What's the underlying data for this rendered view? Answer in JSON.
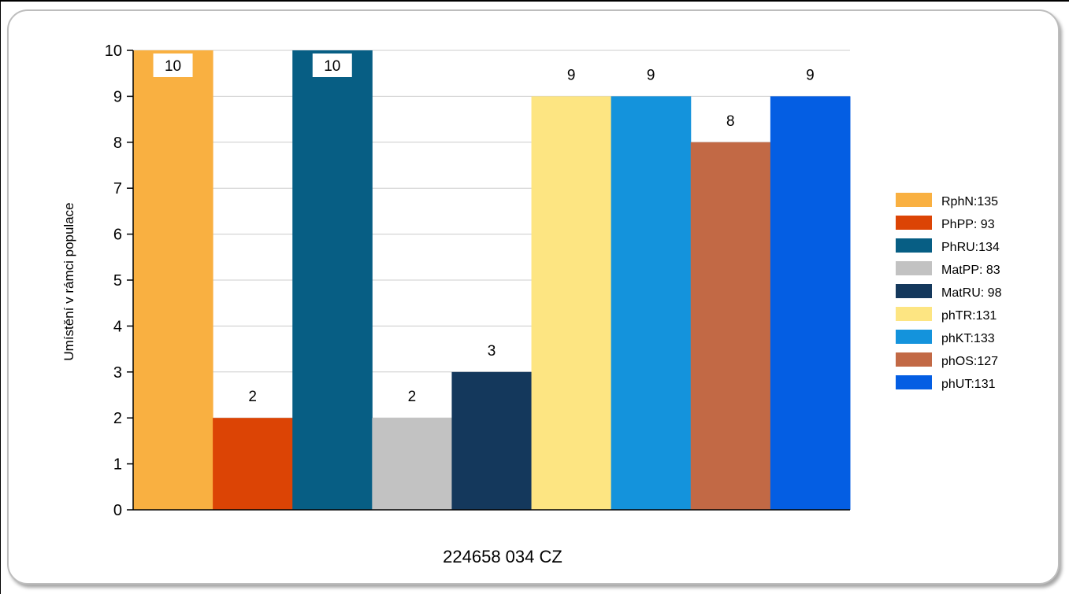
{
  "chart_data": {
    "type": "bar",
    "title": "",
    "xlabel": "224658 034 CZ",
    "ylabel": "Umístění v rámci populace",
    "ylim": [
      0,
      10
    ],
    "yticks": [
      "0",
      "1",
      "2",
      "3",
      "4",
      "5",
      "6",
      "7",
      "8",
      "9",
      "10"
    ],
    "grid": true,
    "legend_position": "right",
    "series": [
      {
        "name": "RphN:135",
        "value": 10,
        "label": "10",
        "color": "#f9b041"
      },
      {
        "name": "PhPP: 93",
        "value": 2,
        "label": "2",
        "color": "#dc4405"
      },
      {
        "name": "PhRU:134",
        "value": 10,
        "label": "10",
        "color": "#075e84"
      },
      {
        "name": "MatPP: 83",
        "value": 2,
        "label": "2",
        "color": "#c2c2c2"
      },
      {
        "name": "MatRU: 98",
        "value": 3,
        "label": "3",
        "color": "#14385c"
      },
      {
        "name": "phTR:131",
        "value": 9,
        "label": "9",
        "color": "#fde582"
      },
      {
        "name": "phKT:133",
        "value": 9,
        "label": "9",
        "color": "#1493dc"
      },
      {
        "name": "phOS:127",
        "value": 8,
        "label": "8",
        "color": "#c26945"
      },
      {
        "name": "phUT:131",
        "value": 9,
        "label": "9",
        "color": "#045ee3"
      }
    ]
  }
}
